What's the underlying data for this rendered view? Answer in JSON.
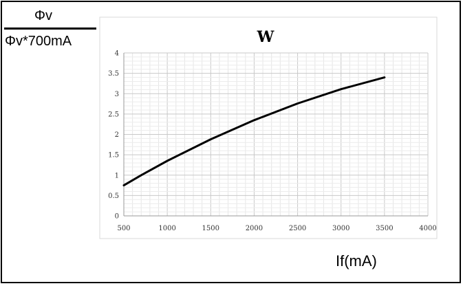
{
  "y_axis_label": {
    "numerator": "Φv",
    "denominator": "Φv*700mA"
  },
  "x_axis_label": "If(mA)",
  "chart_data": {
    "type": "line",
    "title": "W",
    "xlabel": "If(mA)",
    "ylabel": "Φv / Φv*700mA",
    "xlim": [
      500,
      4000
    ],
    "ylim": [
      0,
      4
    ],
    "xticks": [
      "500",
      "1000",
      "1500",
      "2000",
      "2500",
      "3000",
      "3500",
      "4000"
    ],
    "yticks": [
      "0",
      "0.5",
      "1",
      "1.5",
      "2",
      "2.5",
      "3",
      "3.5",
      "4"
    ],
    "grid": true,
    "line_color": "#000000",
    "grid_color": "#d9d9d9",
    "series": [
      {
        "x": [
          500,
          700,
          1000,
          1500,
          2000,
          2500,
          3000,
          3500
        ],
        "y": [
          0.75,
          1.0,
          1.35,
          1.88,
          2.35,
          2.76,
          3.11,
          3.4
        ]
      }
    ]
  }
}
